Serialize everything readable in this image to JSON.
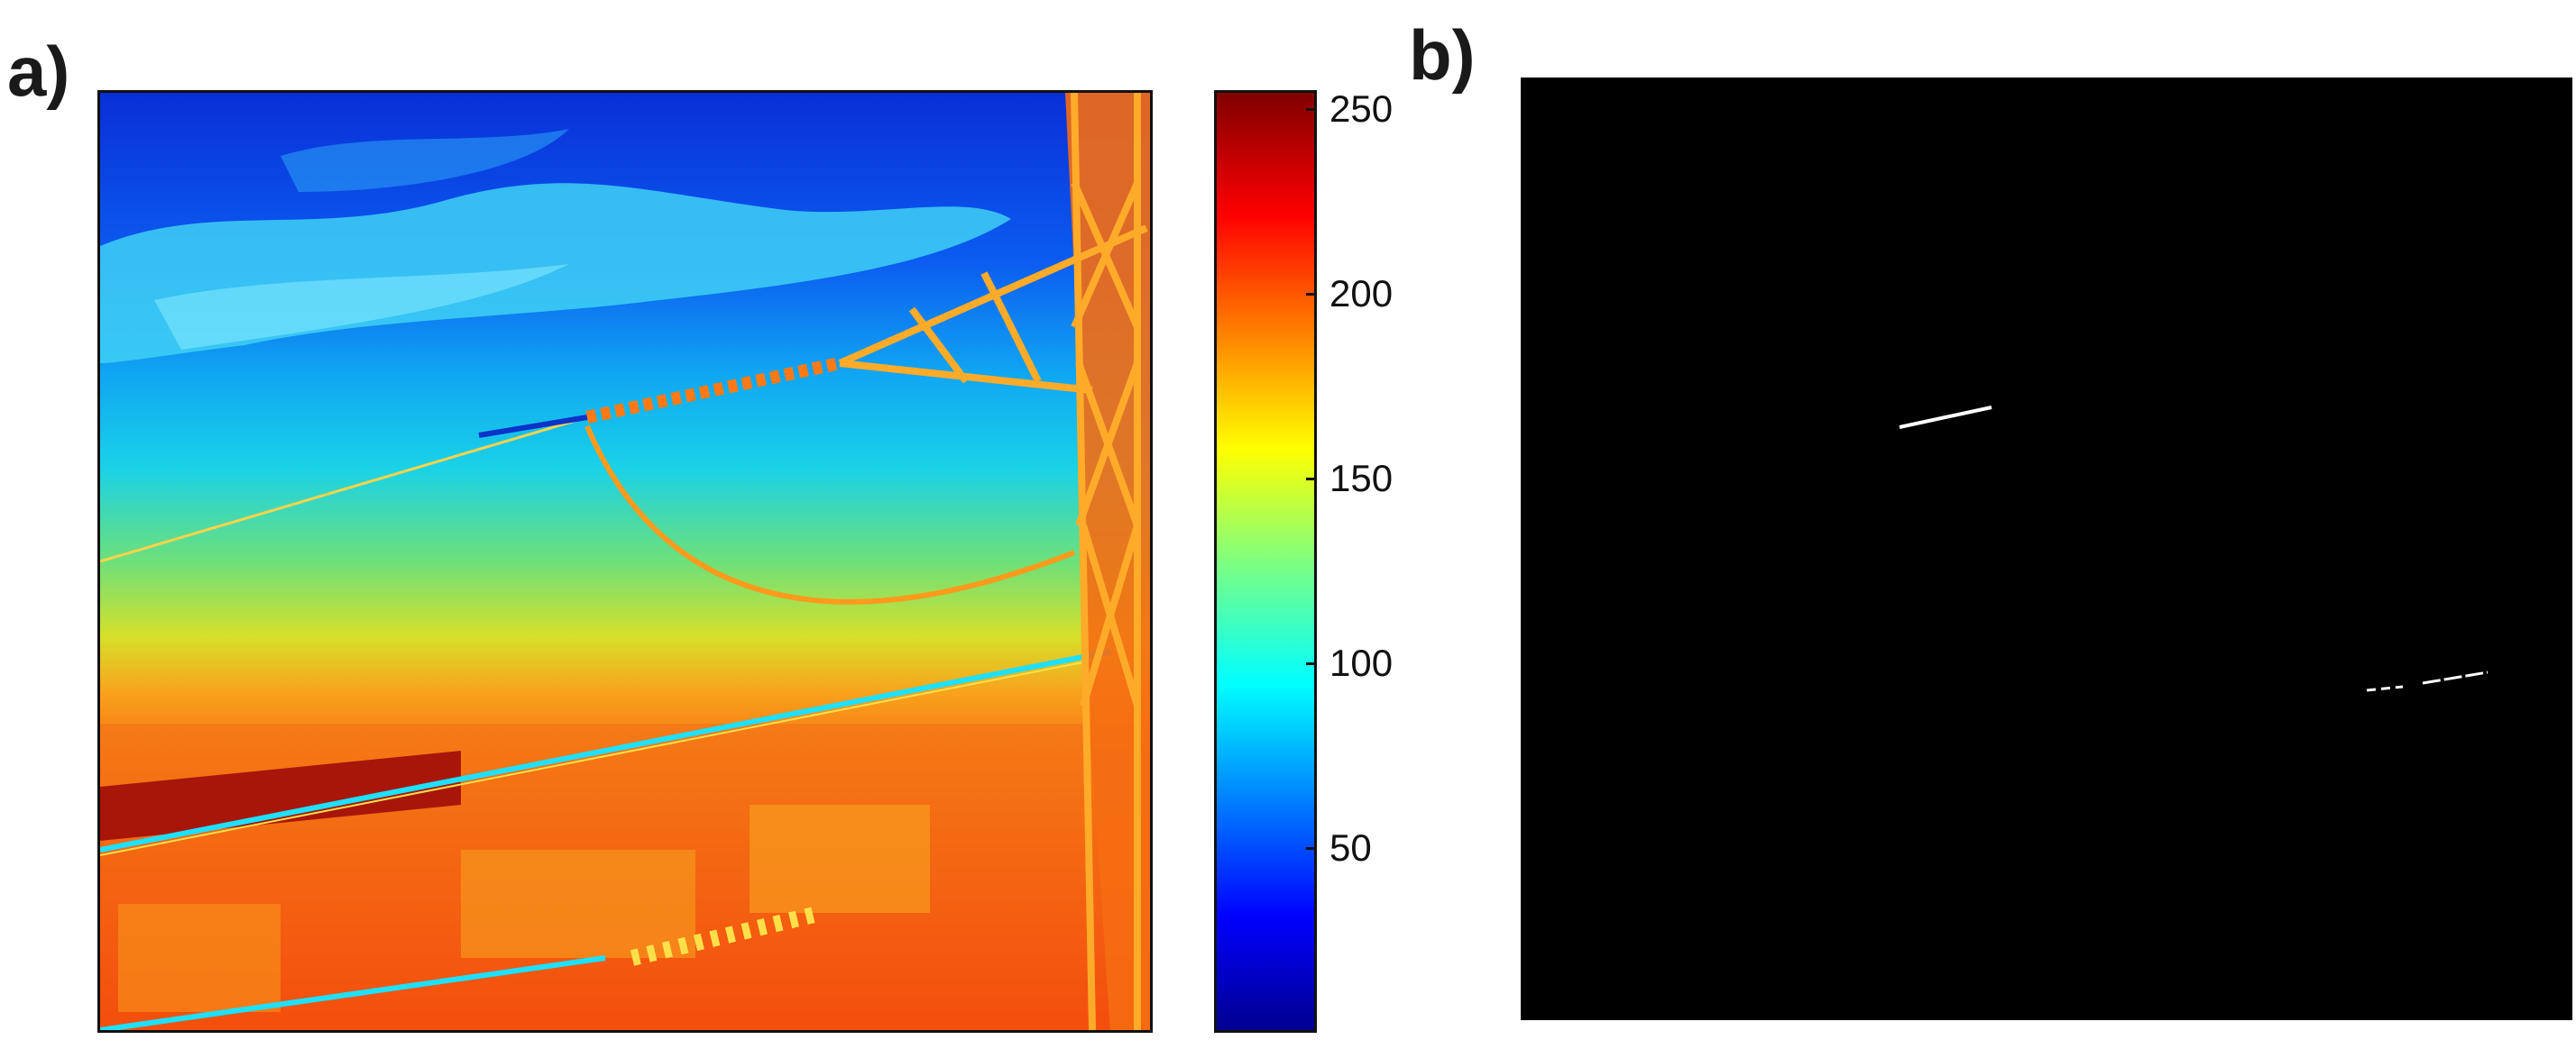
{
  "panel_a": {
    "label": "a)",
    "image_description_icon": "thermal-infrared-image-icon",
    "colormap": "jet"
  },
  "colorbar": {
    "ticks": [
      "250",
      "200",
      "150",
      "100",
      "50"
    ],
    "tick_values": [
      250,
      200,
      150,
      100,
      50
    ],
    "range": [
      0,
      255
    ]
  },
  "panel_b": {
    "label": "b)",
    "image_description_icon": "binary-detection-mask-icon",
    "background_color": "#000000",
    "foreground_color": "#ffffff"
  }
}
